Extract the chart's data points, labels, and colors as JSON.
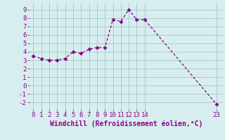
{
  "x": [
    0,
    1,
    2,
    3,
    4,
    5,
    6,
    7,
    8,
    9,
    10,
    11,
    12,
    13,
    14,
    23
  ],
  "y": [
    3.5,
    3.2,
    3.0,
    3.0,
    3.2,
    4.0,
    3.8,
    4.3,
    4.5,
    4.5,
    7.8,
    7.6,
    9.0,
    7.8,
    7.8,
    -2.2
  ],
  "line_color": "#880088",
  "marker": "D",
  "marker_size": 2.5,
  "bg_color": "#d8eeee",
  "grid_color": "#aacccc",
  "xlabel": "Windchill (Refroidissement éolien,°C)",
  "xlim": [
    -0.5,
    23.8
  ],
  "ylim": [
    -2.8,
    9.8
  ],
  "xticks": [
    0,
    1,
    2,
    3,
    4,
    5,
    6,
    7,
    8,
    9,
    10,
    11,
    12,
    13,
    14,
    23
  ],
  "yticks": [
    -2,
    -1,
    0,
    1,
    2,
    3,
    4,
    5,
    6,
    7,
    8,
    9
  ],
  "tick_color": "#880088",
  "label_color": "#880088",
  "xlabel_fontsize": 7,
  "tick_fontsize": 6.5
}
